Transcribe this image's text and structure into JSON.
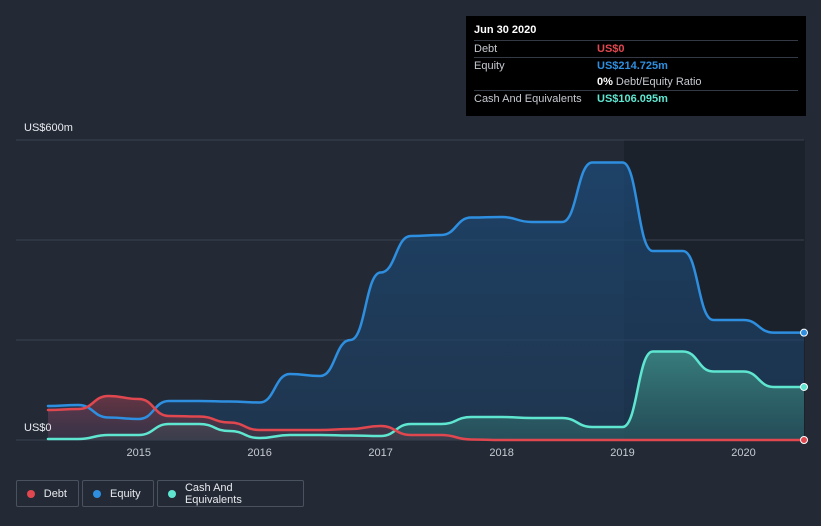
{
  "tooltip": {
    "date": "Jun 30 2020",
    "debt_label": "Debt",
    "debt_value": "US$0",
    "equity_label": "Equity",
    "equity_value": "US$214.725m",
    "ratio_pct": "0%",
    "ratio_label": "Debt/Equity Ratio",
    "cash_label": "Cash And Equivalents",
    "cash_value": "US$106.095m"
  },
  "colors": {
    "debt": "#e0474f",
    "equity": "#2e8fe0",
    "cash": "#5fe6d0",
    "background": "#232a36"
  },
  "chart_data": {
    "type": "area",
    "y_top_label": "US$600m",
    "y_bottom_label": "US$0",
    "ylim": [
      0,
      600
    ],
    "xlim": [
      2014.25,
      2020.5
    ],
    "x_ticks": [
      "2015",
      "2016",
      "2017",
      "2018",
      "2019",
      "2020"
    ],
    "grid": true,
    "legend_position": "bottom-left",
    "series": [
      {
        "name": "Debt",
        "points": [
          [
            2014.25,
            60
          ],
          [
            2014.5,
            62
          ],
          [
            2014.75,
            88
          ],
          [
            2015.0,
            82
          ],
          [
            2015.25,
            48
          ],
          [
            2015.5,
            47
          ],
          [
            2015.75,
            35
          ],
          [
            2016.0,
            20
          ],
          [
            2016.25,
            20
          ],
          [
            2016.5,
            20
          ],
          [
            2016.75,
            22
          ],
          [
            2017.0,
            28
          ],
          [
            2017.25,
            10
          ],
          [
            2017.5,
            10
          ],
          [
            2017.75,
            1
          ],
          [
            2018.0,
            0
          ],
          [
            2018.5,
            0
          ],
          [
            2019.0,
            0
          ],
          [
            2019.5,
            0
          ],
          [
            2020.0,
            0
          ],
          [
            2020.5,
            0
          ]
        ]
      },
      {
        "name": "Equity",
        "points": [
          [
            2014.25,
            68
          ],
          [
            2014.5,
            70
          ],
          [
            2014.75,
            45
          ],
          [
            2015.0,
            42
          ],
          [
            2015.25,
            78
          ],
          [
            2015.5,
            78
          ],
          [
            2015.75,
            77
          ],
          [
            2016.0,
            75
          ],
          [
            2016.25,
            132
          ],
          [
            2016.5,
            128
          ],
          [
            2016.75,
            200
          ],
          [
            2017.0,
            335
          ],
          [
            2017.25,
            408
          ],
          [
            2017.5,
            410
          ],
          [
            2017.75,
            445
          ],
          [
            2018.0,
            446
          ],
          [
            2018.25,
            436
          ],
          [
            2018.5,
            436
          ],
          [
            2018.75,
            555
          ],
          [
            2019.0,
            555
          ],
          [
            2019.25,
            378
          ],
          [
            2019.5,
            378
          ],
          [
            2019.75,
            240
          ],
          [
            2020.0,
            240
          ],
          [
            2020.25,
            214.7
          ],
          [
            2020.5,
            214.7
          ]
        ]
      },
      {
        "name": "Cash And Equivalents",
        "points": [
          [
            2014.25,
            2
          ],
          [
            2014.5,
            2
          ],
          [
            2014.75,
            10
          ],
          [
            2015.0,
            10
          ],
          [
            2015.25,
            32
          ],
          [
            2015.5,
            32
          ],
          [
            2015.75,
            18
          ],
          [
            2016.0,
            4
          ],
          [
            2016.25,
            10
          ],
          [
            2016.5,
            10
          ],
          [
            2016.75,
            9
          ],
          [
            2017.0,
            8
          ],
          [
            2017.25,
            32
          ],
          [
            2017.5,
            32
          ],
          [
            2017.75,
            46
          ],
          [
            2018.0,
            46
          ],
          [
            2018.25,
            44
          ],
          [
            2018.5,
            44
          ],
          [
            2018.75,
            26
          ],
          [
            2019.0,
            26
          ],
          [
            2019.25,
            177
          ],
          [
            2019.5,
            177
          ],
          [
            2019.75,
            137
          ],
          [
            2020.0,
            137
          ],
          [
            2020.25,
            106.1
          ],
          [
            2020.5,
            106.1
          ]
        ]
      }
    ]
  },
  "legend": [
    {
      "label": "Debt"
    },
    {
      "label": "Equity"
    },
    {
      "label": "Cash And Equivalents"
    }
  ]
}
